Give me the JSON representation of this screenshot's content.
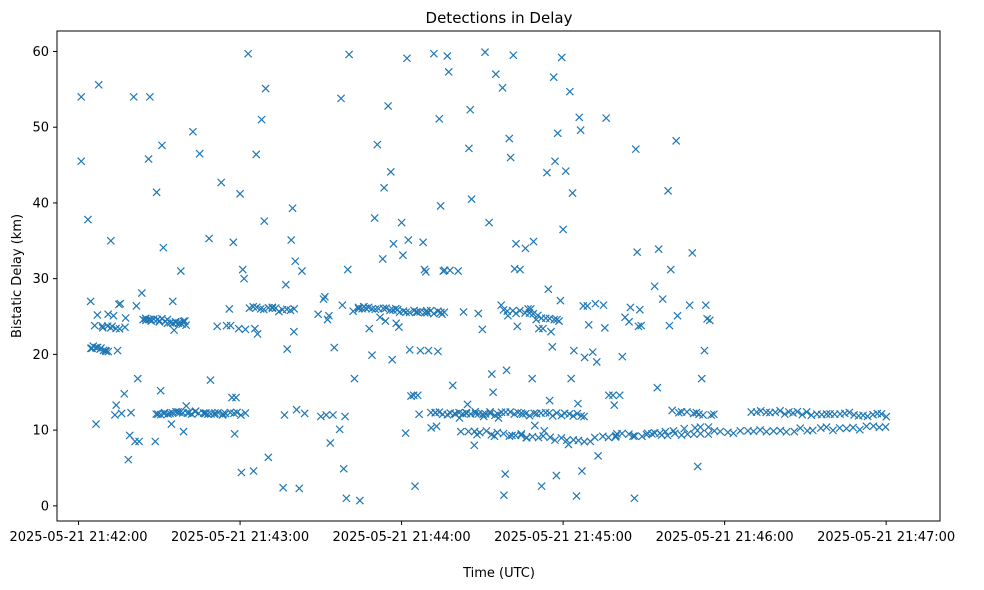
{
  "chart_data": {
    "type": "scatter",
    "title": "Detections in Delay",
    "xlabel": "Time (UTC)",
    "ylabel": "Bistatic Delay (km)",
    "x_unit": "seconds after 2025-05-21 21:42:00 UTC",
    "xlim": [
      -8,
      320
    ],
    "ylim": [
      -2,
      62.7
    ],
    "marker": "x",
    "color": "#1f77b4",
    "x_ticks": [
      {
        "value": 0,
        "label": "2025-05-21 21:42:00"
      },
      {
        "value": 60,
        "label": "2025-05-21 21:43:00"
      },
      {
        "value": 120,
        "label": "2025-05-21 21:44:00"
      },
      {
        "value": 180,
        "label": "2025-05-21 21:45:00"
      },
      {
        "value": 240,
        "label": "2025-05-21 21:46:00"
      },
      {
        "value": 300,
        "label": "2025-05-21 21:47:00"
      }
    ],
    "y_ticks": [
      {
        "value": 0,
        "label": "0"
      },
      {
        "value": 10,
        "label": "10"
      },
      {
        "value": 20,
        "label": "20"
      },
      {
        "value": 30,
        "label": "30"
      },
      {
        "value": 40,
        "label": "40"
      },
      {
        "value": 50,
        "label": "50"
      },
      {
        "value": 60,
        "label": "60"
      }
    ],
    "points": [
      [
        1,
        54
      ],
      [
        1,
        45.5
      ],
      [
        3.5,
        37.8
      ],
      [
        4.5,
        27
      ],
      [
        5,
        20.8
      ],
      [
        6,
        23.8
      ],
      [
        6.5,
        10.8
      ],
      [
        7,
        25.2
      ],
      [
        7.5,
        55.6
      ],
      [
        8,
        20.7
      ],
      [
        9,
        23.5
      ],
      [
        10,
        20.5
      ],
      [
        11,
        25.3
      ],
      [
        12,
        35
      ],
      [
        12.5,
        23.7
      ],
      [
        13,
        25.1
      ],
      [
        13.5,
        12
      ],
      [
        14,
        13.3
      ],
      [
        14.5,
        20.5
      ],
      [
        15,
        26.6
      ],
      [
        15.5,
        26.7
      ],
      [
        16,
        12.2
      ],
      [
        17,
        14.8
      ],
      [
        17.5,
        24.8
      ],
      [
        18.5,
        6.1
      ],
      [
        19,
        9.3
      ],
      [
        19.5,
        12.3
      ],
      [
        20.5,
        54
      ],
      [
        21,
        8.5
      ],
      [
        21.5,
        26.4
      ],
      [
        22,
        16.8
      ],
      [
        22.5,
        8.5
      ],
      [
        23.5,
        28.1
      ],
      [
        24,
        24.6
      ],
      [
        25,
        24.5
      ],
      [
        26,
        45.8
      ],
      [
        26.5,
        54
      ],
      [
        27,
        24.4
      ],
      [
        28.5,
        8.5
      ],
      [
        29,
        41.4
      ],
      [
        29.5,
        12.1
      ],
      [
        30,
        24.3
      ],
      [
        30.5,
        15.2
      ],
      [
        31,
        47.6
      ],
      [
        31.5,
        34.1
      ],
      [
        32,
        12.3
      ],
      [
        33,
        24.1
      ],
      [
        34,
        12.2
      ],
      [
        34.5,
        10.8
      ],
      [
        35,
        27
      ],
      [
        35.5,
        23.2
      ],
      [
        36,
        24.3
      ],
      [
        37,
        12.4
      ],
      [
        38,
        31
      ],
      [
        38.5,
        24
      ],
      [
        39,
        9.8
      ],
      [
        39.5,
        24.4
      ],
      [
        40,
        13.2
      ],
      [
        41,
        12.3
      ],
      [
        42.5,
        49.4
      ],
      [
        43.5,
        12.5
      ],
      [
        45,
        46.5
      ],
      [
        47,
        12.2
      ],
      [
        48,
        12.1
      ],
      [
        48.5,
        35.3
      ],
      [
        49,
        16.6
      ],
      [
        50.5,
        12.1
      ],
      [
        51.5,
        23.7
      ],
      [
        53,
        42.7
      ],
      [
        53.5,
        12
      ],
      [
        55,
        23.8
      ],
      [
        56,
        26
      ],
      [
        56.5,
        23.8
      ],
      [
        57,
        14.3
      ],
      [
        57.5,
        34.8
      ],
      [
        58,
        9.5
      ],
      [
        58.5,
        14.3
      ],
      [
        59.5,
        23.4
      ],
      [
        60,
        41.2
      ],
      [
        60.5,
        4.4
      ],
      [
        61,
        31.2
      ],
      [
        61.5,
        30
      ],
      [
        62,
        23.3
      ],
      [
        63,
        59.7
      ],
      [
        63.5,
        26.1
      ],
      [
        65,
        4.6
      ],
      [
        65.5,
        23.4
      ],
      [
        66,
        46.4
      ],
      [
        66.5,
        22.7
      ],
      [
        68,
        51
      ],
      [
        69,
        37.6
      ],
      [
        69.5,
        55.1
      ],
      [
        70.5,
        6.4
      ],
      [
        72,
        26.1
      ],
      [
        76,
        2.4
      ],
      [
        76.5,
        12
      ],
      [
        77,
        29.2
      ],
      [
        77.5,
        20.7
      ],
      [
        79,
        35.1
      ],
      [
        79.5,
        39.3
      ],
      [
        80,
        23
      ],
      [
        80.5,
        32.3
      ],
      [
        81,
        12.7
      ],
      [
        82,
        2.3
      ],
      [
        83,
        31
      ],
      [
        84,
        12.2
      ],
      [
        89,
        25.3
      ],
      [
        90,
        11.8
      ],
      [
        91,
        27.3
      ],
      [
        91.5,
        27.6
      ],
      [
        92,
        12
      ],
      [
        92.5,
        24.6
      ],
      [
        93,
        25.1
      ],
      [
        93.5,
        8.3
      ],
      [
        94.5,
        12
      ],
      [
        95,
        20.9
      ],
      [
        97,
        10.1
      ],
      [
        97.5,
        53.8
      ],
      [
        98,
        26.5
      ],
      [
        98.5,
        4.9
      ],
      [
        99,
        11.8
      ],
      [
        99.5,
        1
      ],
      [
        100,
        31.2
      ],
      [
        100.5,
        59.6
      ],
      [
        102,
        25.7
      ],
      [
        102.5,
        16.8
      ],
      [
        104,
        26.2
      ],
      [
        104.5,
        0.7
      ],
      [
        106,
        26.3
      ],
      [
        108,
        23.4
      ],
      [
        109,
        19.9
      ],
      [
        110,
        38
      ],
      [
        111,
        47.7
      ],
      [
        112,
        24.9
      ],
      [
        113,
        32.6
      ],
      [
        113.5,
        42
      ],
      [
        114,
        24.4
      ],
      [
        115,
        52.8
      ],
      [
        116,
        44.1
      ],
      [
        116.5,
        19.3
      ],
      [
        117,
        34.6
      ],
      [
        118,
        24.1
      ],
      [
        118.5,
        25.9
      ],
      [
        119,
        23.6
      ],
      [
        120,
        37.4
      ],
      [
        120.5,
        33.1
      ],
      [
        121.5,
        9.6
      ],
      [
        122,
        59.1
      ],
      [
        122.5,
        35.1
      ],
      [
        123,
        20.6
      ],
      [
        123.5,
        14.5
      ],
      [
        124.5,
        14.6
      ],
      [
        125,
        2.6
      ],
      [
        125.5,
        25.6
      ],
      [
        126,
        14.6
      ],
      [
        126.5,
        12.1
      ],
      [
        127,
        20.5
      ],
      [
        128,
        34.8
      ],
      [
        128.5,
        31.2
      ],
      [
        129,
        30.9
      ],
      [
        129.5,
        25.5
      ],
      [
        130,
        20.5
      ],
      [
        131,
        10.3
      ],
      [
        132,
        59.7
      ],
      [
        132.5,
        12.3
      ],
      [
        133,
        10.5
      ],
      [
        133.5,
        20.4
      ],
      [
        134,
        51.1
      ],
      [
        134.5,
        39.6
      ],
      [
        135,
        25.3
      ],
      [
        135.5,
        31
      ],
      [
        136,
        31.1
      ],
      [
        137,
        59.4
      ],
      [
        137.5,
        57.3
      ],
      [
        138,
        31.1
      ],
      [
        139,
        15.9
      ],
      [
        140,
        12.1
      ],
      [
        141,
        31
      ],
      [
        141.5,
        11.6
      ],
      [
        142,
        9.8
      ],
      [
        143,
        25.6
      ],
      [
        144,
        12.3
      ],
      [
        144.5,
        13.4
      ],
      [
        145,
        47.2
      ],
      [
        145.5,
        52.3
      ],
      [
        146,
        40.5
      ],
      [
        147,
        8
      ],
      [
        147.5,
        12.2
      ],
      [
        148,
        9.4
      ],
      [
        148.5,
        25.4
      ],
      [
        150,
        23.3
      ],
      [
        150.5,
        11.8
      ],
      [
        151,
        59.9
      ],
      [
        152.5,
        37.4
      ],
      [
        153,
        12.2
      ],
      [
        153.5,
        17.4
      ],
      [
        154,
        15
      ],
      [
        154.5,
        9.2
      ],
      [
        155,
        57
      ],
      [
        156,
        11.6
      ],
      [
        157,
        26.5
      ],
      [
        157.5,
        55.2
      ],
      [
        158,
        1.4
      ],
      [
        158.5,
        4.2
      ],
      [
        159,
        17.9
      ],
      [
        159.5,
        25.1
      ],
      [
        160,
        48.5
      ],
      [
        160.5,
        46
      ],
      [
        161,
        9.3
      ],
      [
        161.5,
        59.5
      ],
      [
        162,
        31.3
      ],
      [
        162.5,
        34.6
      ],
      [
        163,
        23.7
      ],
      [
        164,
        31.2
      ],
      [
        164.5,
        9.5
      ],
      [
        165,
        12.1
      ],
      [
        166,
        34
      ],
      [
        166.5,
        9
      ],
      [
        167,
        26
      ],
      [
        168,
        26
      ],
      [
        168.5,
        16.8
      ],
      [
        169,
        34.9
      ],
      [
        169.5,
        10.6
      ],
      [
        170,
        24.6
      ],
      [
        171,
        23.4
      ],
      [
        172,
        2.6
      ],
      [
        172.5,
        23.4
      ],
      [
        173,
        9.9
      ],
      [
        174,
        44
      ],
      [
        174.5,
        28.6
      ],
      [
        175,
        13.9
      ],
      [
        175.5,
        23
      ],
      [
        176,
        21
      ],
      [
        176.5,
        56.6
      ],
      [
        177,
        45.5
      ],
      [
        177.5,
        4
      ],
      [
        178,
        49.2
      ],
      [
        178.5,
        24.4
      ],
      [
        179,
        27.1
      ],
      [
        179.5,
        59.2
      ],
      [
        180,
        36.5
      ],
      [
        181,
        44.2
      ],
      [
        182,
        8.1
      ],
      [
        182.5,
        54.7
      ],
      [
        183,
        16.8
      ],
      [
        183.5,
        41.3
      ],
      [
        184,
        20.5
      ],
      [
        185,
        1.3
      ],
      [
        185.5,
        13.5
      ],
      [
        186,
        51.3
      ],
      [
        186.5,
        49.6
      ],
      [
        187,
        4.6
      ],
      [
        187.5,
        26.4
      ],
      [
        188,
        19.6
      ],
      [
        189,
        26.4
      ],
      [
        189.5,
        23.9
      ],
      [
        191,
        20.3
      ],
      [
        192,
        26.7
      ],
      [
        192.5,
        19
      ],
      [
        193,
        6.6
      ],
      [
        195,
        26.5
      ],
      [
        195.5,
        23.5
      ],
      [
        196,
        51.2
      ],
      [
        197,
        14.6
      ],
      [
        198.5,
        14.6
      ],
      [
        199,
        13.3
      ],
      [
        199.5,
        9.1
      ],
      [
        200,
        9.5
      ],
      [
        201,
        14.6
      ],
      [
        202,
        19.7
      ],
      [
        203,
        24.9
      ],
      [
        204.5,
        24.3
      ],
      [
        205,
        26.2
      ],
      [
        206,
        9.2
      ],
      [
        206.5,
        1
      ],
      [
        207,
        47.1
      ],
      [
        207.5,
        33.5
      ],
      [
        208,
        23.7
      ],
      [
        208.5,
        25.9
      ],
      [
        209,
        23.8
      ],
      [
        211,
        9.4
      ],
      [
        213,
        9.5
      ],
      [
        214,
        29
      ],
      [
        215,
        15.6
      ],
      [
        215.5,
        33.9
      ],
      [
        216,
        9.6
      ],
      [
        217,
        27.3
      ],
      [
        218,
        9.8
      ],
      [
        219,
        41.6
      ],
      [
        219.5,
        23.8
      ],
      [
        220,
        31.2
      ],
      [
        220.5,
        12.6
      ],
      [
        221,
        9.9
      ],
      [
        222,
        48.2
      ],
      [
        222.5,
        25.1
      ],
      [
        223,
        12.3
      ],
      [
        224,
        12.4
      ],
      [
        225,
        10.2
      ],
      [
        226,
        12.4
      ],
      [
        227,
        26.5
      ],
      [
        228,
        33.4
      ],
      [
        228.5,
        12.2
      ],
      [
        229,
        10.3
      ],
      [
        229.5,
        12.3
      ],
      [
        230,
        5.2
      ],
      [
        230.5,
        12.1
      ],
      [
        231,
        10.4
      ],
      [
        231.5,
        16.8
      ],
      [
        232,
        12
      ],
      [
        232.5,
        20.5
      ],
      [
        233,
        26.5
      ],
      [
        233.5,
        24.7
      ],
      [
        234,
        10.4
      ],
      [
        234.5,
        24.5
      ],
      [
        235,
        12
      ],
      [
        236,
        12.1
      ]
    ],
    "bands": [
      {
        "x_start": 4.5,
        "x_end": 11,
        "y_start": 20.9,
        "y_end": 20.5,
        "count": 8
      },
      {
        "x_start": 9,
        "x_end": 17,
        "y_start": 23.6,
        "y_end": 23.4,
        "count": 6
      },
      {
        "x_start": 25,
        "x_end": 40,
        "y_start": 24.8,
        "y_end": 24.1,
        "count": 16
      },
      {
        "x_start": 29,
        "x_end": 62,
        "y_start": 12.3,
        "y_end": 12.1,
        "count": 24
      },
      {
        "x_start": 65,
        "x_end": 80,
        "y_start": 26.1,
        "y_end": 25.8,
        "count": 12
      },
      {
        "x_start": 104,
        "x_end": 136,
        "y_start": 26.2,
        "y_end": 25.4,
        "count": 26
      },
      {
        "x_start": 131,
        "x_end": 188,
        "y_start": 12.3,
        "y_end": 12.0,
        "count": 40
      },
      {
        "x_start": 145,
        "x_end": 190,
        "y_start": 9.9,
        "y_end": 8.4,
        "count": 22
      },
      {
        "x_start": 158,
        "x_end": 178,
        "y_start": 26.0,
        "y_end": 24.5,
        "count": 14
      },
      {
        "x_start": 192,
        "x_end": 300,
        "y_start": 9.2,
        "y_end": 10.4,
        "count": 45
      },
      {
        "x_start": 250,
        "x_end": 300,
        "y_start": 12.4,
        "y_end": 12.0,
        "count": 30
      }
    ]
  }
}
